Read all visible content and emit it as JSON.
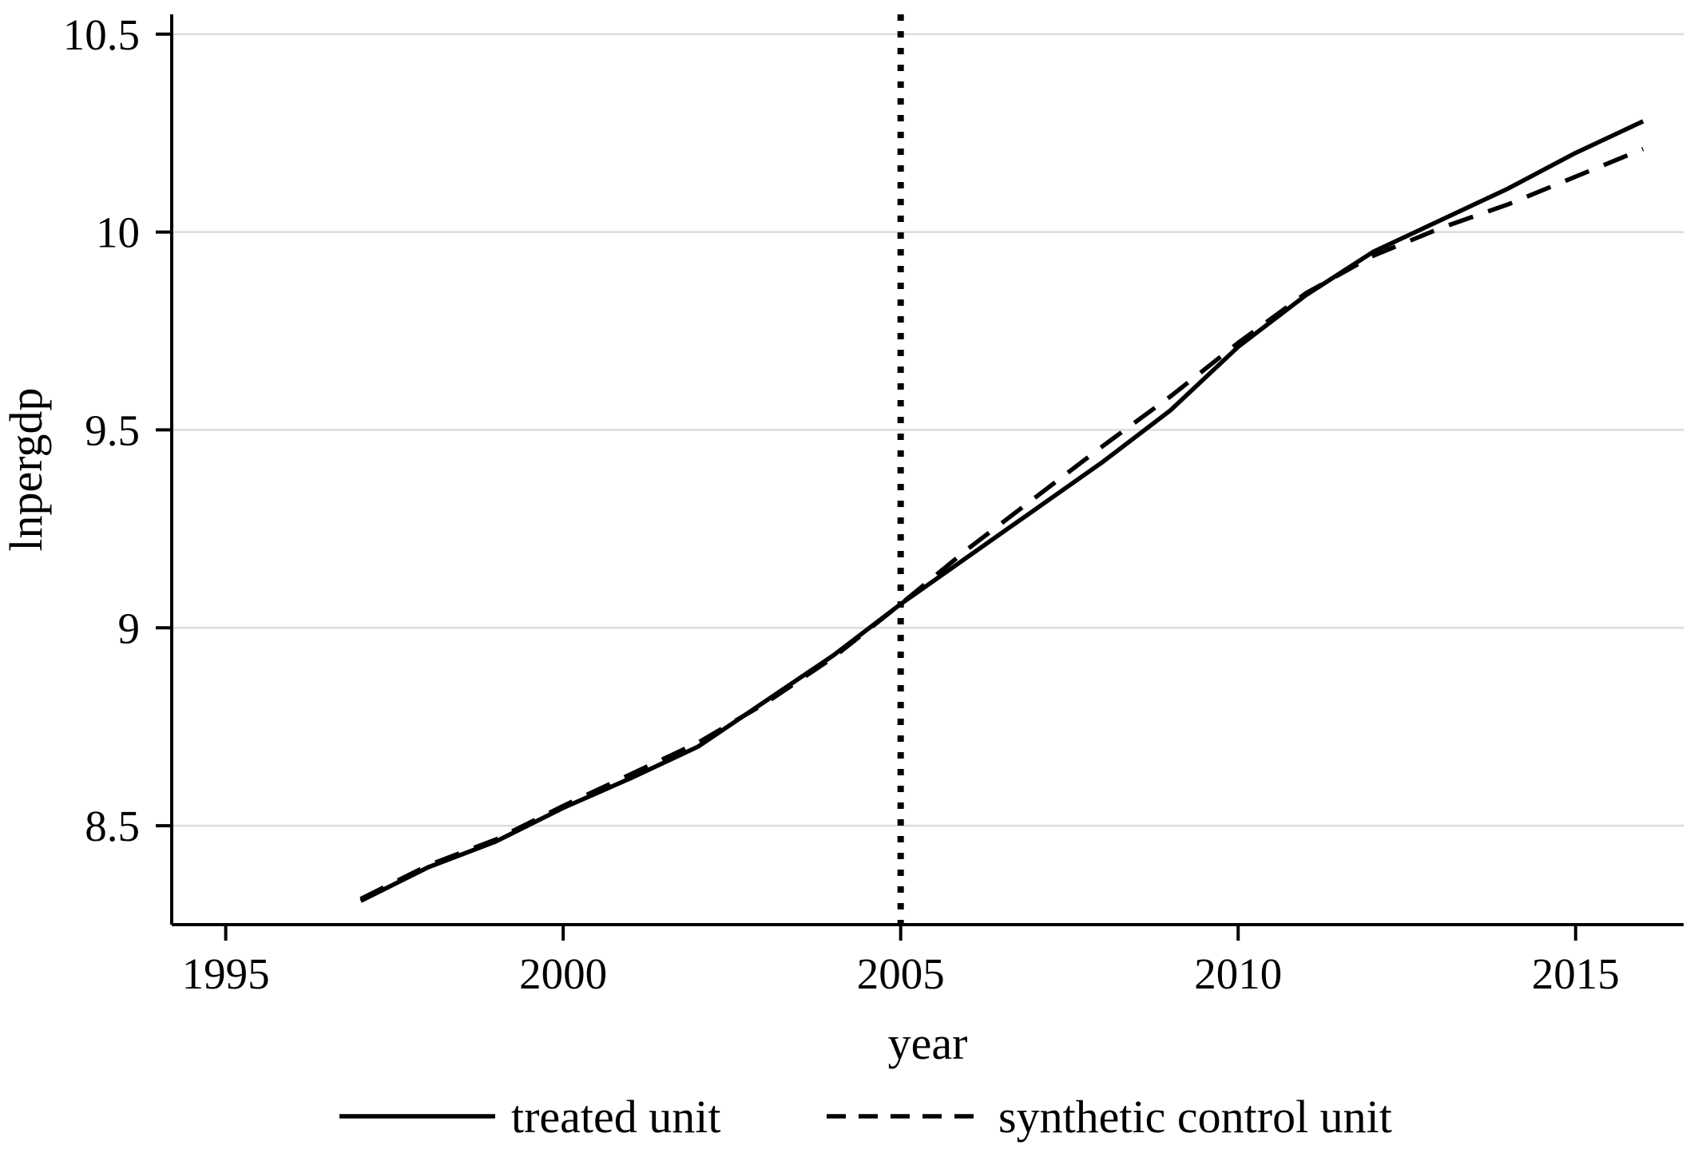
{
  "chart_data": {
    "type": "line",
    "x": [
      1997,
      1998,
      1999,
      2000,
      2001,
      2002,
      2003,
      2004,
      2005,
      2006,
      2007,
      2008,
      2009,
      2010,
      2011,
      2012,
      2013,
      2014,
      2015,
      2016
    ],
    "series": [
      {
        "name": "treated unit",
        "style": "solid",
        "values": [
          8.31,
          8.395,
          8.46,
          8.545,
          8.62,
          8.7,
          8.815,
          8.93,
          9.06,
          9.18,
          9.3,
          9.42,
          9.55,
          9.71,
          9.84,
          9.95,
          10.03,
          10.11,
          10.2,
          10.28
        ]
      },
      {
        "name": "synthetic control unit",
        "style": "dashed",
        "values": [
          8.315,
          8.4,
          8.465,
          8.55,
          8.63,
          8.71,
          8.81,
          8.925,
          9.06,
          9.2,
          9.33,
          9.46,
          9.585,
          9.72,
          9.845,
          9.94,
          10.01,
          10.07,
          10.14,
          10.21
        ]
      }
    ],
    "title": "",
    "xlabel": "year",
    "ylabel": "lnpergdp",
    "xlim": [
      1994.2,
      2016.6
    ],
    "ylim": [
      8.25,
      10.55
    ],
    "xticks": [
      1995,
      2000,
      2005,
      2010,
      2015
    ],
    "xtick_labels": [
      "1995",
      "2000",
      "2005",
      "2010",
      "2015"
    ],
    "yticks": [
      8.5,
      9,
      9.5,
      10,
      10.5
    ],
    "ytick_labels": [
      "8.5",
      "9",
      "9.5",
      "10",
      "10.5"
    ],
    "vline": {
      "x": 2005,
      "style": "dotted"
    },
    "grid": "horizontal",
    "legend_position": "bottom",
    "colors": {
      "line": "#000000",
      "grid": "#dcdcdc",
      "axis": "#000000",
      "background": "#ffffff"
    }
  }
}
